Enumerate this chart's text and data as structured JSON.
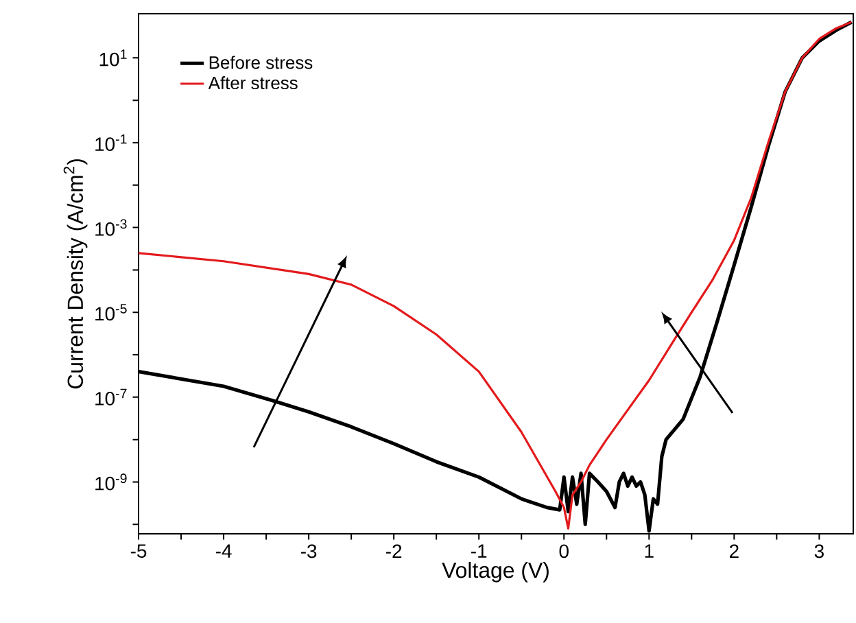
{
  "chart_data": {
    "type": "line",
    "xlabel": "Voltage (V)",
    "ylabel": "Current Density (A/cm$^{2}$)",
    "log": "y",
    "grid": false,
    "legend": "top left",
    "marker": "none",
    "line_style": "solid",
    "xlim": [
      -5,
      3.4
    ],
    "ylim": [
      6e-11,
      110
    ],
    "xticks": [
      -5,
      {
        "value": -4.5,
        "label": null
      },
      -4,
      {
        "value": -3.5,
        "label": null
      },
      -3,
      {
        "value": -2.5,
        "label": null
      },
      -2,
      {
        "value": -1.5,
        "label": null
      },
      -1,
      {
        "value": -0.5,
        "label": null
      },
      0,
      {
        "value": 0.5,
        "label": null
      },
      1,
      {
        "value": 1.5,
        "label": null
      },
      2,
      {
        "value": 2.5,
        "label": null
      },
      3
    ],
    "yticks": [
      {
        "value": 1e-10,
        "label": null
      },
      {
        "value": 1e-09,
        "label": "10$^{-9}$"
      },
      {
        "value": 1e-08,
        "label": null
      },
      {
        "value": 1e-07,
        "label": "10$^{-7}$"
      },
      {
        "value": 1e-06,
        "label": null
      },
      {
        "value": 1e-05,
        "label": "10$^{-5}$"
      },
      {
        "value": 0.0001,
        "label": null
      },
      {
        "value": 0.001,
        "label": "10$^{-3}$"
      },
      {
        "value": 0.01,
        "label": null
      },
      {
        "value": 0.1,
        "label": "10$^{-1}$"
      },
      {
        "value": 1,
        "label": null
      },
      {
        "value": 10,
        "label": "10$^{1}$"
      }
    ],
    "series": [
      {
        "name": "Before stress",
        "color": "#000000",
        "x": [
          -5,
          -4,
          -3.4,
          -3,
          -2.5,
          -2,
          -1.5,
          -1,
          -0.5,
          -0.2,
          -0.05,
          0,
          0.05,
          0.1,
          0.15,
          0.2,
          0.25,
          0.3,
          0.4,
          0.5,
          0.6,
          0.65,
          0.7,
          0.75,
          0.8,
          0.85,
          0.9,
          0.95,
          1.0,
          1.05,
          1.1,
          1.15,
          1.2,
          1.4,
          1.6,
          1.8,
          2.0,
          2.2,
          2.4,
          2.6,
          2.8,
          3.0,
          3.2,
          3.38
        ],
        "values": [
          4e-07,
          1.8e-07,
          8e-08,
          4.5e-08,
          2e-08,
          8e-09,
          3e-09,
          1.3e-09,
          4e-10,
          2.5e-10,
          2.2e-10,
          1.3e-09,
          2e-10,
          1.3e-09,
          3e-10,
          1.6e-09,
          1e-10,
          1.6e-09,
          1e-09,
          6e-10,
          2.5e-10,
          1e-09,
          1.6e-09,
          8e-10,
          1.3e-09,
          8e-10,
          1e-09,
          5e-10,
          7e-11,
          4e-10,
          3e-10,
          4e-09,
          1e-08,
          3e-08,
          3e-07,
          6e-06,
          0.00013,
          0.003,
          0.08,
          1.6,
          10,
          25,
          45,
          70
        ]
      },
      {
        "name": "After stress",
        "color": "#e31a1c",
        "x": [
          -5,
          -4,
          -3,
          -2.5,
          -2,
          -1.5,
          -1,
          -0.5,
          -0.1,
          0,
          0.05,
          0.1,
          0.2,
          0.3,
          0.5,
          0.75,
          1.0,
          1.25,
          1.5,
          1.75,
          2.0,
          2.2,
          2.4,
          2.6,
          2.8,
          3.0,
          3.2,
          3.38
        ],
        "values": [
          0.00025,
          0.00016,
          8e-05,
          4.5e-05,
          1.4e-05,
          3e-06,
          4e-07,
          1.5e-08,
          6e-10,
          2.5e-10,
          8e-11,
          5e-10,
          1e-09,
          2.5e-09,
          1e-08,
          5e-08,
          2.5e-07,
          1.6e-06,
          1e-05,
          6e-05,
          0.0005,
          0.005,
          0.1,
          1.6,
          10,
          28,
          50,
          70
        ]
      }
    ]
  }
}
